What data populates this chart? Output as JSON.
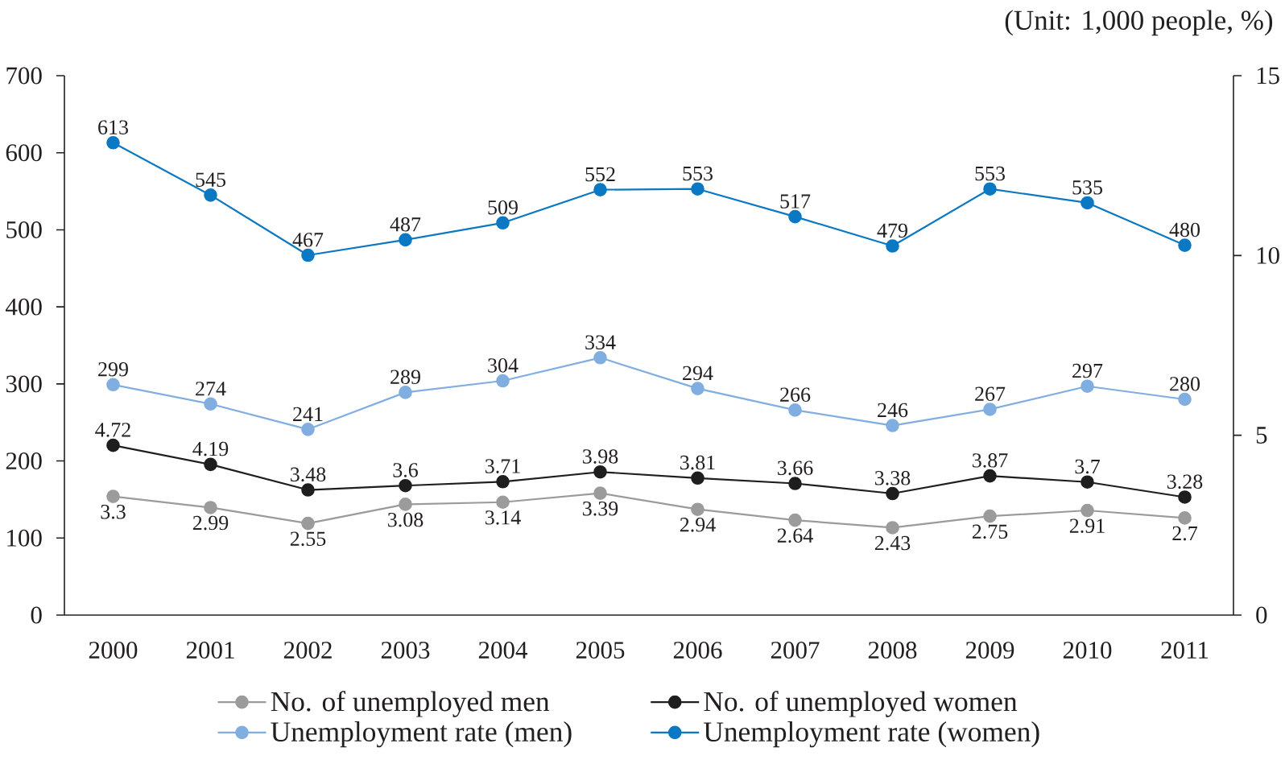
{
  "chart_data": {
    "type": "line",
    "annotations": [
      "(Unit: 1,000 people, %)"
    ],
    "categories": [
      "2000",
      "2001",
      "2002",
      "2003",
      "2004",
      "2005",
      "2006",
      "2007",
      "2008",
      "2009",
      "2010",
      "2011"
    ],
    "series": [
      {
        "name": "No. of unemployed men",
        "color": "#9b9b9b",
        "axis": "y2",
        "values": [
          3.3,
          2.99,
          2.55,
          3.08,
          3.14,
          3.39,
          2.94,
          2.64,
          2.43,
          2.75,
          2.91,
          2.7
        ]
      },
      {
        "name": "No. of unemployed women",
        "color": "#1e1e1e",
        "axis": "y2",
        "values": [
          4.72,
          4.19,
          3.48,
          3.6,
          3.71,
          3.98,
          3.81,
          3.66,
          3.38,
          3.87,
          3.7,
          3.28
        ]
      },
      {
        "name": "Unemployment rate (men)",
        "color": "#80aee0",
        "axis": "y",
        "values": [
          299,
          274,
          241,
          289,
          304,
          334,
          294,
          266,
          246,
          267,
          297,
          280
        ]
      },
      {
        "name": "Unemployment rate (women)",
        "color": "#0b78c3",
        "axis": "y",
        "values": [
          613,
          545,
          467,
          487,
          509,
          552,
          553,
          517,
          479,
          553,
          535,
          480
        ]
      }
    ],
    "ylim": [
      0,
      700
    ],
    "yticks": [
      0,
      100,
      200,
      300,
      400,
      500,
      600,
      700
    ],
    "y2lim": [
      0,
      15
    ],
    "y2ticks": [
      0,
      5,
      10,
      15
    ],
    "data_labels": true,
    "legend": "bottom",
    "marker": "circle",
    "line_style": "solid"
  }
}
